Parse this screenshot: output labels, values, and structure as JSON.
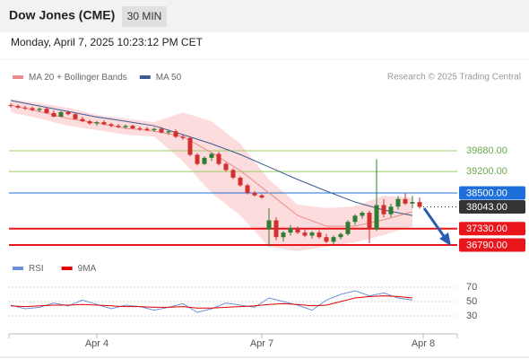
{
  "header": {
    "title": "Dow Jones (CME)",
    "interval": "30 MIN",
    "date": "Monday, April 7, 2025 10:23:12 PM CET",
    "source": "Research © 2025 Trading Central"
  },
  "chart_data": [
    {
      "type": "candlestick",
      "categories": [
        null,
        null,
        null,
        null,
        null,
        null,
        null,
        null,
        null,
        null,
        null,
        null,
        "Apr 4",
        null,
        null,
        null,
        null,
        null,
        null,
        null,
        null,
        null,
        null,
        null,
        null,
        null,
        null,
        null,
        null,
        null,
        null,
        null,
        null,
        null,
        null,
        "Apr 7",
        null,
        null,
        null,
        null,
        null,
        null,
        null,
        null,
        null,
        null,
        null,
        null,
        null,
        null,
        null,
        null,
        null,
        null,
        null,
        null,
        null,
        "Apr 8"
      ],
      "open": [
        41380,
        41350,
        41300,
        41280,
        41220,
        41260,
        41120,
        41000,
        41150,
        41080,
        40920,
        40850,
        40780,
        40820,
        40750,
        40700,
        40660,
        40700,
        40620,
        40600,
        40560,
        40600,
        40480,
        40520,
        40340,
        40300,
        39750,
        39450,
        39650,
        39780,
        39450,
        39250,
        39000,
        38750,
        38500,
        38420,
        37300,
        37600,
        37050,
        37200,
        37350,
        37200,
        37100,
        37200,
        37050,
        36900,
        37050,
        37150,
        37550,
        37750,
        37850,
        37300,
        38100,
        37800,
        38050,
        38300,
        38150,
        38200
      ],
      "high": [
        41450,
        41400,
        41360,
        41330,
        41300,
        41300,
        41200,
        41180,
        41200,
        41120,
        41000,
        40900,
        40860,
        40880,
        40800,
        40760,
        40740,
        40740,
        40680,
        40660,
        40640,
        40660,
        40560,
        40580,
        40400,
        40340,
        39800,
        39700,
        39820,
        39850,
        39500,
        39300,
        39050,
        38800,
        38560,
        38460,
        38000,
        37700,
        37250,
        37450,
        37400,
        37300,
        37250,
        37280,
        37150,
        37100,
        37200,
        37600,
        37800,
        37900,
        37920,
        39600,
        38300,
        38150,
        38400,
        38500,
        38400,
        38350
      ],
      "low": [
        41300,
        41260,
        41220,
        41180,
        41150,
        41100,
        40980,
        40980,
        41040,
        40900,
        40820,
        40740,
        40700,
        40720,
        40650,
        40620,
        40600,
        40580,
        40540,
        40520,
        40500,
        40450,
        40400,
        40300,
        40240,
        39700,
        39400,
        39420,
        39550,
        39400,
        39200,
        38950,
        38700,
        38450,
        38380,
        38300,
        36750,
        36950,
        36900,
        37100,
        37150,
        37050,
        37000,
        37000,
        36850,
        36820,
        36980,
        37100,
        37450,
        37650,
        36850,
        37250,
        37700,
        37700,
        37950,
        38100,
        38000,
        37980
      ],
      "close": [
        41350,
        41300,
        41280,
        41220,
        41260,
        41120,
        41000,
        41150,
        41080,
        40920,
        40850,
        40780,
        40820,
        40750,
        40700,
        40660,
        40700,
        40620,
        40600,
        40560,
        40600,
        40480,
        40520,
        40340,
        40300,
        39750,
        39450,
        39650,
        39780,
        39450,
        39250,
        39000,
        38750,
        38500,
        38420,
        38350,
        37600,
        37050,
        37200,
        37350,
        37200,
        37100,
        37200,
        37050,
        36900,
        37050,
        37150,
        37550,
        37750,
        37850,
        37300,
        38100,
        37800,
        38050,
        38300,
        38150,
        38200,
        38043
      ],
      "up_color": "#2e7d32",
      "down_color": "#d32f2f",
      "ylim": [
        36400,
        41900
      ],
      "overlays": [
        {
          "name": "MA 20 + Bollinger Bands",
          "color": "#ef8a8a",
          "band_color": "#fbd3d3",
          "x": [
            0,
            4,
            8,
            12,
            16,
            20,
            24,
            28,
            32,
            36,
            40,
            44,
            48,
            52,
            56
          ],
          "values": [
            41380,
            41170,
            40940,
            40790,
            40620,
            40530,
            40350,
            39820,
            39230,
            38500,
            37760,
            37410,
            37410,
            37620,
            37880
          ],
          "upper": [
            41580,
            41440,
            41290,
            41060,
            40940,
            40820,
            41140,
            40850,
            40110,
            38940,
            38120,
            38000,
            38060,
            38410,
            38350
          ],
          "lower": [
            41140,
            40940,
            40700,
            40560,
            40410,
            40350,
            39530,
            38500,
            37760,
            36730,
            36590,
            36730,
            36880,
            37120,
            37410
          ]
        },
        {
          "name": "MA 50",
          "color": "#3b5b92",
          "x": [
            0,
            4,
            8,
            12,
            16,
            20,
            24,
            28,
            32,
            36,
            40,
            44,
            48,
            52,
            56
          ],
          "values": [
            41530,
            41350,
            41170,
            40990,
            40850,
            40700,
            40410,
            40110,
            39760,
            39350,
            38940,
            38560,
            38200,
            37940,
            37760
          ]
        }
      ],
      "levels": {
        "values": [
          39880,
          39200,
          38500,
          38043,
          37330,
          36790
        ],
        "value_labels": [
          "39880.00",
          "39200.00",
          "38500.00",
          "38043.00",
          "37330.00",
          "36790.00"
        ],
        "colors": [
          "#9ccc65",
          "#9ccc65",
          "#1e6fd9",
          "#333333",
          "#e8151b",
          "#e8151b"
        ],
        "styles": [
          "line",
          "line",
          "tag",
          "current",
          "tag",
          "tag"
        ]
      }
    },
    {
      "type": "line",
      "x": [
        0,
        2,
        4,
        6,
        8,
        10,
        12,
        14,
        16,
        18,
        20,
        22,
        24,
        26,
        28,
        30,
        32,
        34,
        36,
        38,
        40,
        42,
        44,
        46,
        48,
        50,
        52,
        54,
        56
      ],
      "xlim": [
        0,
        57
      ],
      "series": [
        {
          "name": "RSI",
          "color": "#6a8fd8",
          "values": [
            45,
            40,
            42,
            48,
            44,
            52,
            46,
            40,
            45,
            43,
            38,
            42,
            47,
            35,
            40,
            48,
            45,
            42,
            55,
            50,
            45,
            38,
            52,
            60,
            65,
            58,
            62,
            55,
            52
          ]
        },
        {
          "name": "9MA",
          "color": "#e00000",
          "values": [
            44,
            43,
            44,
            45,
            45,
            46,
            45,
            44,
            43,
            43,
            42,
            42,
            43,
            41,
            41,
            42,
            43,
            44,
            46,
            47,
            46,
            44,
            45,
            50,
            55,
            57,
            58,
            57,
            55
          ]
        }
      ],
      "ylim": [
        10,
        82
      ],
      "yticks": [
        70,
        50,
        30
      ]
    }
  ]
}
